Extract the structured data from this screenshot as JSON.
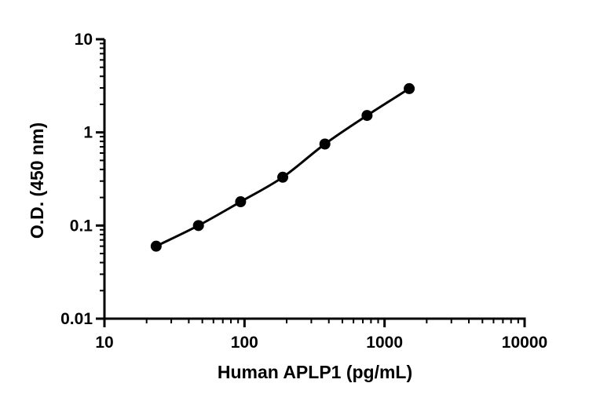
{
  "chart_data": {
    "type": "scatter",
    "title": "",
    "xlabel": "Human APLP1 (pg/mL)",
    "ylabel": "O.D. (450 nm)",
    "x_scale": "log",
    "y_scale": "log",
    "xlim": [
      10,
      10000
    ],
    "ylim": [
      0.01,
      10
    ],
    "x_ticks": [
      "10",
      "100",
      "1000",
      "10000"
    ],
    "y_ticks": [
      "0.01",
      "0.1",
      "1",
      "10"
    ],
    "grid": false,
    "legend": "none",
    "marker_color": "#000000",
    "line_color": "#000000",
    "fit_curve": true,
    "series": [
      {
        "x": [
          23.4,
          46.9,
          93.8,
          187.5,
          375,
          750,
          1500
        ],
        "y": [
          0.06,
          0.1,
          0.18,
          0.33,
          0.75,
          1.52,
          2.95
        ]
      }
    ]
  }
}
